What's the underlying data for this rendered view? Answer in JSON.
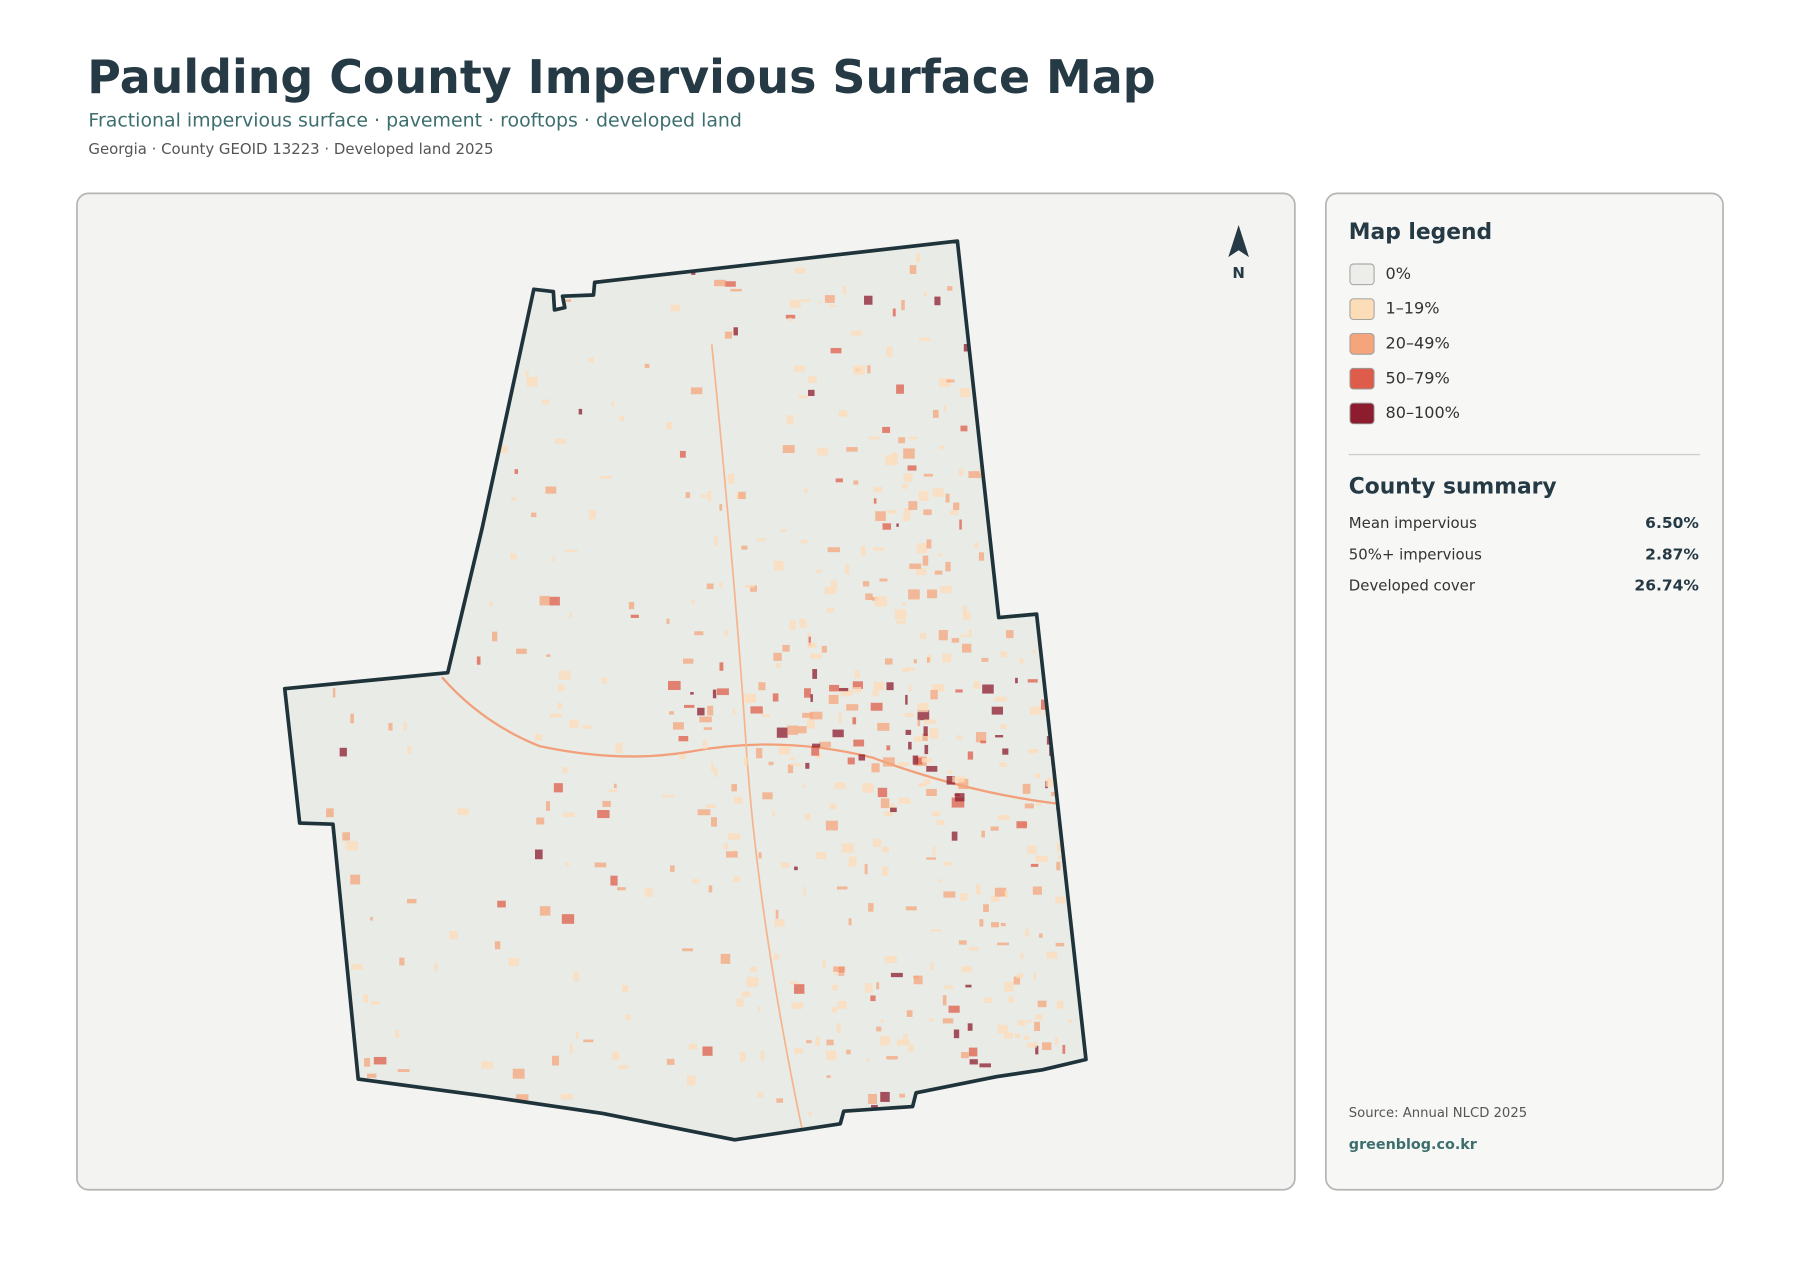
{
  "header": {
    "title": "Paulding County Impervious Surface Map",
    "subtitle": "Fractional impervious surface · pavement · rooftops · developed land",
    "meta": "Georgia · County GEOID 13223 · Developed land 2025"
  },
  "map": {
    "north": "N"
  },
  "legend": {
    "title": "Map legend",
    "items": [
      {
        "label": "0%",
        "color": "#ededea"
      },
      {
        "label": "1–19%",
        "color": "#fddcb8"
      },
      {
        "label": "20–49%",
        "color": "#f4a57c"
      },
      {
        "label": "50–79%",
        "color": "#de5d4a"
      },
      {
        "label": "80–100%",
        "color": "#8c1c2e"
      }
    ]
  },
  "summary": {
    "title": "County summary",
    "rows": [
      {
        "label": "Mean impervious",
        "value": "6.50%"
      },
      {
        "label": "50%+ impervious",
        "value": "2.87%"
      },
      {
        "label": "Developed cover",
        "value": "26.74%"
      }
    ]
  },
  "footer": {
    "source": "Source: Annual NLCD 2025",
    "credit": "greenblog.co.kr"
  }
}
